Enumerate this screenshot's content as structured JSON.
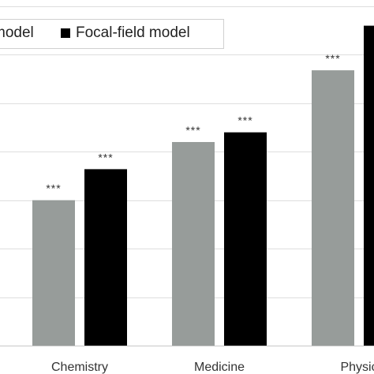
{
  "chart_data": {
    "type": "bar",
    "categories": [
      "Chemistry",
      "Medicine",
      "Physics"
    ],
    "visible_category_labels": [
      "Chemistry",
      "Medicine",
      "Physic"
    ],
    "series": [
      {
        "name": "model",
        "color": "#979c9a",
        "values": [
          1.5,
          2.1,
          2.84
        ],
        "annotations": [
          "***",
          "***",
          "***"
        ]
      },
      {
        "name": "Focal-field model",
        "color": "#000000",
        "values": [
          1.82,
          2.2,
          3.3
        ],
        "annotations": [
          "***",
          "***",
          ""
        ]
      }
    ],
    "ylim": [
      0,
      3.5
    ],
    "y_tick_step": 0.5,
    "grid": true,
    "legend_position": "top-left",
    "xlabel": "",
    "ylabel": ""
  }
}
